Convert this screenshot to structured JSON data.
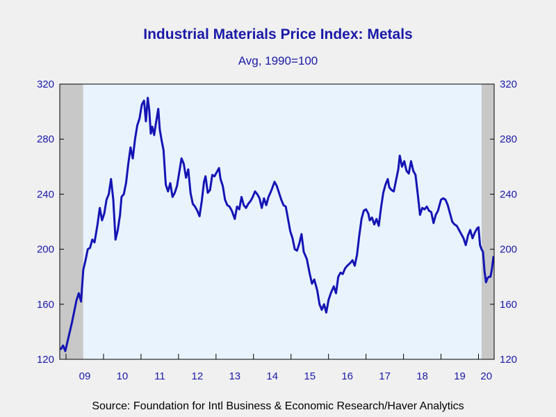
{
  "chart_data": {
    "type": "line",
    "title": "Industrial Materials Price Index: Metals",
    "subtitle": "Avg, 1990=100",
    "source": "Source:  Foundation for Intl Business & Economic Research/Haver Analytics",
    "xlabel": "",
    "ylabel": "",
    "ylim": [
      120,
      320
    ],
    "yticks": [
      120,
      160,
      200,
      240,
      280,
      320
    ],
    "xlim": [
      2008.833,
      2020.417
    ],
    "x_tick_labels": [
      "09",
      "10",
      "11",
      "12",
      "13",
      "14",
      "15",
      "16",
      "17",
      "18",
      "19",
      "20"
    ],
    "dual_y_axis": true,
    "grid": false,
    "recession_shading": [
      [
        2008.833,
        2009.458
      ],
      [
        2020.083,
        2020.417
      ]
    ],
    "colors": {
      "line": "#1414b4",
      "text": "#1a1aa8",
      "plot_bg": "#e9f3fe",
      "shade": "#c8c8c8",
      "page_bg": "#f0f0f0"
    },
    "series": [
      {
        "points": [
          [
            2008.85,
            127
          ],
          [
            2008.92,
            130
          ],
          [
            2008.98,
            126
          ],
          [
            2009.04,
            133
          ],
          [
            2009.1,
            140
          ],
          [
            2009.16,
            147
          ],
          [
            2009.22,
            155
          ],
          [
            2009.28,
            163
          ],
          [
            2009.34,
            168
          ],
          [
            2009.4,
            162
          ],
          [
            2009.46,
            185
          ],
          [
            2009.52,
            192
          ],
          [
            2009.58,
            200
          ],
          [
            2009.64,
            201
          ],
          [
            2009.7,
            207
          ],
          [
            2009.76,
            205
          ],
          [
            2009.84,
            218
          ],
          [
            2009.9,
            230
          ],
          [
            2009.96,
            221
          ],
          [
            2010.02,
            226
          ],
          [
            2010.08,
            236
          ],
          [
            2010.14,
            240
          ],
          [
            2010.2,
            251
          ],
          [
            2010.26,
            236
          ],
          [
            2010.32,
            207
          ],
          [
            2010.38,
            214
          ],
          [
            2010.44,
            225
          ],
          [
            2010.48,
            238
          ],
          [
            2010.54,
            240
          ],
          [
            2010.6,
            248
          ],
          [
            2010.66,
            262
          ],
          [
            2010.72,
            274
          ],
          [
            2010.78,
            266
          ],
          [
            2010.84,
            280
          ],
          [
            2010.9,
            290
          ],
          [
            2010.96,
            295
          ],
          [
            2011.02,
            305
          ],
          [
            2011.08,
            308
          ],
          [
            2011.13,
            293
          ],
          [
            2011.18,
            310
          ],
          [
            2011.22,
            301
          ],
          [
            2011.26,
            284
          ],
          [
            2011.3,
            289
          ],
          [
            2011.35,
            283
          ],
          [
            2011.4,
            292
          ],
          [
            2011.46,
            302
          ],
          [
            2011.5,
            287
          ],
          [
            2011.55,
            279
          ],
          [
            2011.6,
            272
          ],
          [
            2011.66,
            247
          ],
          [
            2011.72,
            242
          ],
          [
            2011.78,
            248
          ],
          [
            2011.84,
            238
          ],
          [
            2011.9,
            241
          ],
          [
            2011.96,
            246
          ],
          [
            2012.02,
            256
          ],
          [
            2012.08,
            266
          ],
          [
            2012.14,
            262
          ],
          [
            2012.2,
            252
          ],
          [
            2012.26,
            258
          ],
          [
            2012.32,
            241
          ],
          [
            2012.38,
            233
          ],
          [
            2012.44,
            231
          ],
          [
            2012.5,
            228
          ],
          [
            2012.56,
            224
          ],
          [
            2012.62,
            235
          ],
          [
            2012.68,
            249
          ],
          [
            2012.72,
            253
          ],
          [
            2012.78,
            241
          ],
          [
            2012.84,
            243
          ],
          [
            2012.9,
            254
          ],
          [
            2012.96,
            253
          ],
          [
            2013.02,
            256
          ],
          [
            2013.08,
            259
          ],
          [
            2013.12,
            251
          ],
          [
            2013.18,
            246
          ],
          [
            2013.24,
            236
          ],
          [
            2013.3,
            232
          ],
          [
            2013.36,
            231
          ],
          [
            2013.42,
            228
          ],
          [
            2013.5,
            222
          ],
          [
            2013.56,
            231
          ],
          [
            2013.62,
            229
          ],
          [
            2013.68,
            238
          ],
          [
            2013.74,
            232
          ],
          [
            2013.8,
            230
          ],
          [
            2013.86,
            233
          ],
          [
            2013.92,
            235
          ],
          [
            2013.98,
            238
          ],
          [
            2014.04,
            242
          ],
          [
            2014.1,
            240
          ],
          [
            2014.16,
            237
          ],
          [
            2014.22,
            230
          ],
          [
            2014.28,
            237
          ],
          [
            2014.34,
            232
          ],
          [
            2014.4,
            238
          ],
          [
            2014.48,
            243
          ],
          [
            2014.56,
            249
          ],
          [
            2014.62,
            246
          ],
          [
            2014.68,
            241
          ],
          [
            2014.74,
            236
          ],
          [
            2014.8,
            232
          ],
          [
            2014.86,
            231
          ],
          [
            2014.92,
            222
          ],
          [
            2014.98,
            213
          ],
          [
            2015.04,
            208
          ],
          [
            2015.1,
            200
          ],
          [
            2015.16,
            199
          ],
          [
            2015.22,
            204
          ],
          [
            2015.28,
            211
          ],
          [
            2015.34,
            198
          ],
          [
            2015.42,
            193
          ],
          [
            2015.5,
            182
          ],
          [
            2015.56,
            175
          ],
          [
            2015.62,
            178
          ],
          [
            2015.7,
            170
          ],
          [
            2015.76,
            160
          ],
          [
            2015.82,
            156
          ],
          [
            2015.88,
            160
          ],
          [
            2015.94,
            154
          ],
          [
            2016.0,
            163
          ],
          [
            2016.06,
            168
          ],
          [
            2016.14,
            173
          ],
          [
            2016.2,
            168
          ],
          [
            2016.26,
            180
          ],
          [
            2016.32,
            183
          ],
          [
            2016.38,
            182
          ],
          [
            2016.44,
            186
          ],
          [
            2016.5,
            188
          ],
          [
            2016.58,
            190
          ],
          [
            2016.64,
            192
          ],
          [
            2016.7,
            188
          ],
          [
            2016.76,
            196
          ],
          [
            2016.82,
            210
          ],
          [
            2016.88,
            222
          ],
          [
            2016.94,
            228
          ],
          [
            2017.0,
            229
          ],
          [
            2017.06,
            226
          ],
          [
            2017.1,
            221
          ],
          [
            2017.16,
            223
          ],
          [
            2017.22,
            218
          ],
          [
            2017.28,
            222
          ],
          [
            2017.34,
            217
          ],
          [
            2017.4,
            230
          ],
          [
            2017.46,
            241
          ],
          [
            2017.52,
            247
          ],
          [
            2017.58,
            251
          ],
          [
            2017.62,
            245
          ],
          [
            2017.68,
            243
          ],
          [
            2017.74,
            242
          ],
          [
            2017.8,
            250
          ],
          [
            2017.86,
            258
          ],
          [
            2017.9,
            268
          ],
          [
            2017.96,
            260
          ],
          [
            2018.02,
            264
          ],
          [
            2018.08,
            257
          ],
          [
            2018.14,
            255
          ],
          [
            2018.2,
            264
          ],
          [
            2018.26,
            257
          ],
          [
            2018.32,
            254
          ],
          [
            2018.38,
            240
          ],
          [
            2018.44,
            225
          ],
          [
            2018.5,
            230
          ],
          [
            2018.56,
            229
          ],
          [
            2018.62,
            231
          ],
          [
            2018.68,
            228
          ],
          [
            2018.74,
            227
          ],
          [
            2018.8,
            219
          ],
          [
            2018.86,
            225
          ],
          [
            2018.92,
            228
          ],
          [
            2019.0,
            236
          ],
          [
            2019.06,
            237
          ],
          [
            2019.12,
            236
          ],
          [
            2019.18,
            232
          ],
          [
            2019.24,
            226
          ],
          [
            2019.3,
            220
          ],
          [
            2019.36,
            218
          ],
          [
            2019.42,
            217
          ],
          [
            2019.48,
            214
          ],
          [
            2019.54,
            211
          ],
          [
            2019.6,
            208
          ],
          [
            2019.66,
            203
          ],
          [
            2019.72,
            210
          ],
          [
            2019.78,
            214
          ],
          [
            2019.84,
            208
          ],
          [
            2019.9,
            212
          ],
          [
            2019.96,
            215
          ],
          [
            2020.0,
            216
          ],
          [
            2020.04,
            203
          ],
          [
            2020.08,
            200
          ],
          [
            2020.12,
            198
          ],
          [
            2020.16,
            184
          ],
          [
            2020.2,
            176
          ],
          [
            2020.24,
            179
          ],
          [
            2020.28,
            180
          ],
          [
            2020.32,
            180
          ],
          [
            2020.36,
            186
          ],
          [
            2020.4,
            195
          ]
        ]
      }
    ]
  }
}
